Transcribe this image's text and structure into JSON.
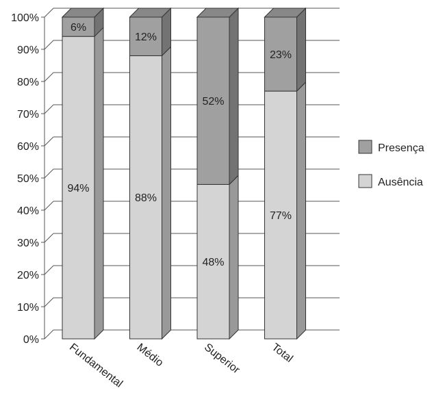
{
  "chart_data": {
    "type": "bar",
    "stacked": true,
    "percent_stacked": true,
    "style": "3d",
    "categories": [
      "Fundamental",
      "Médio",
      "Superior",
      "Total"
    ],
    "series": [
      {
        "name": "Ausência",
        "values": [
          94,
          88,
          48,
          77
        ],
        "labels": [
          "94%",
          "88%",
          "48%",
          "77%"
        ],
        "color": "#d4d4d4"
      },
      {
        "name": "Presença",
        "values": [
          6,
          12,
          52,
          23
        ],
        "labels": [
          "6%",
          "12%",
          "52%",
          "23%"
        ],
        "color": "#a0a0a0"
      }
    ],
    "yticks": [
      "0%",
      "10%",
      "20%",
      "30%",
      "40%",
      "50%",
      "60%",
      "70%",
      "80%",
      "90%",
      "100%"
    ],
    "ylim": [
      0,
      100
    ],
    "grid": true,
    "legend": {
      "position": "right",
      "order": [
        "Presença",
        "Ausência"
      ]
    }
  }
}
